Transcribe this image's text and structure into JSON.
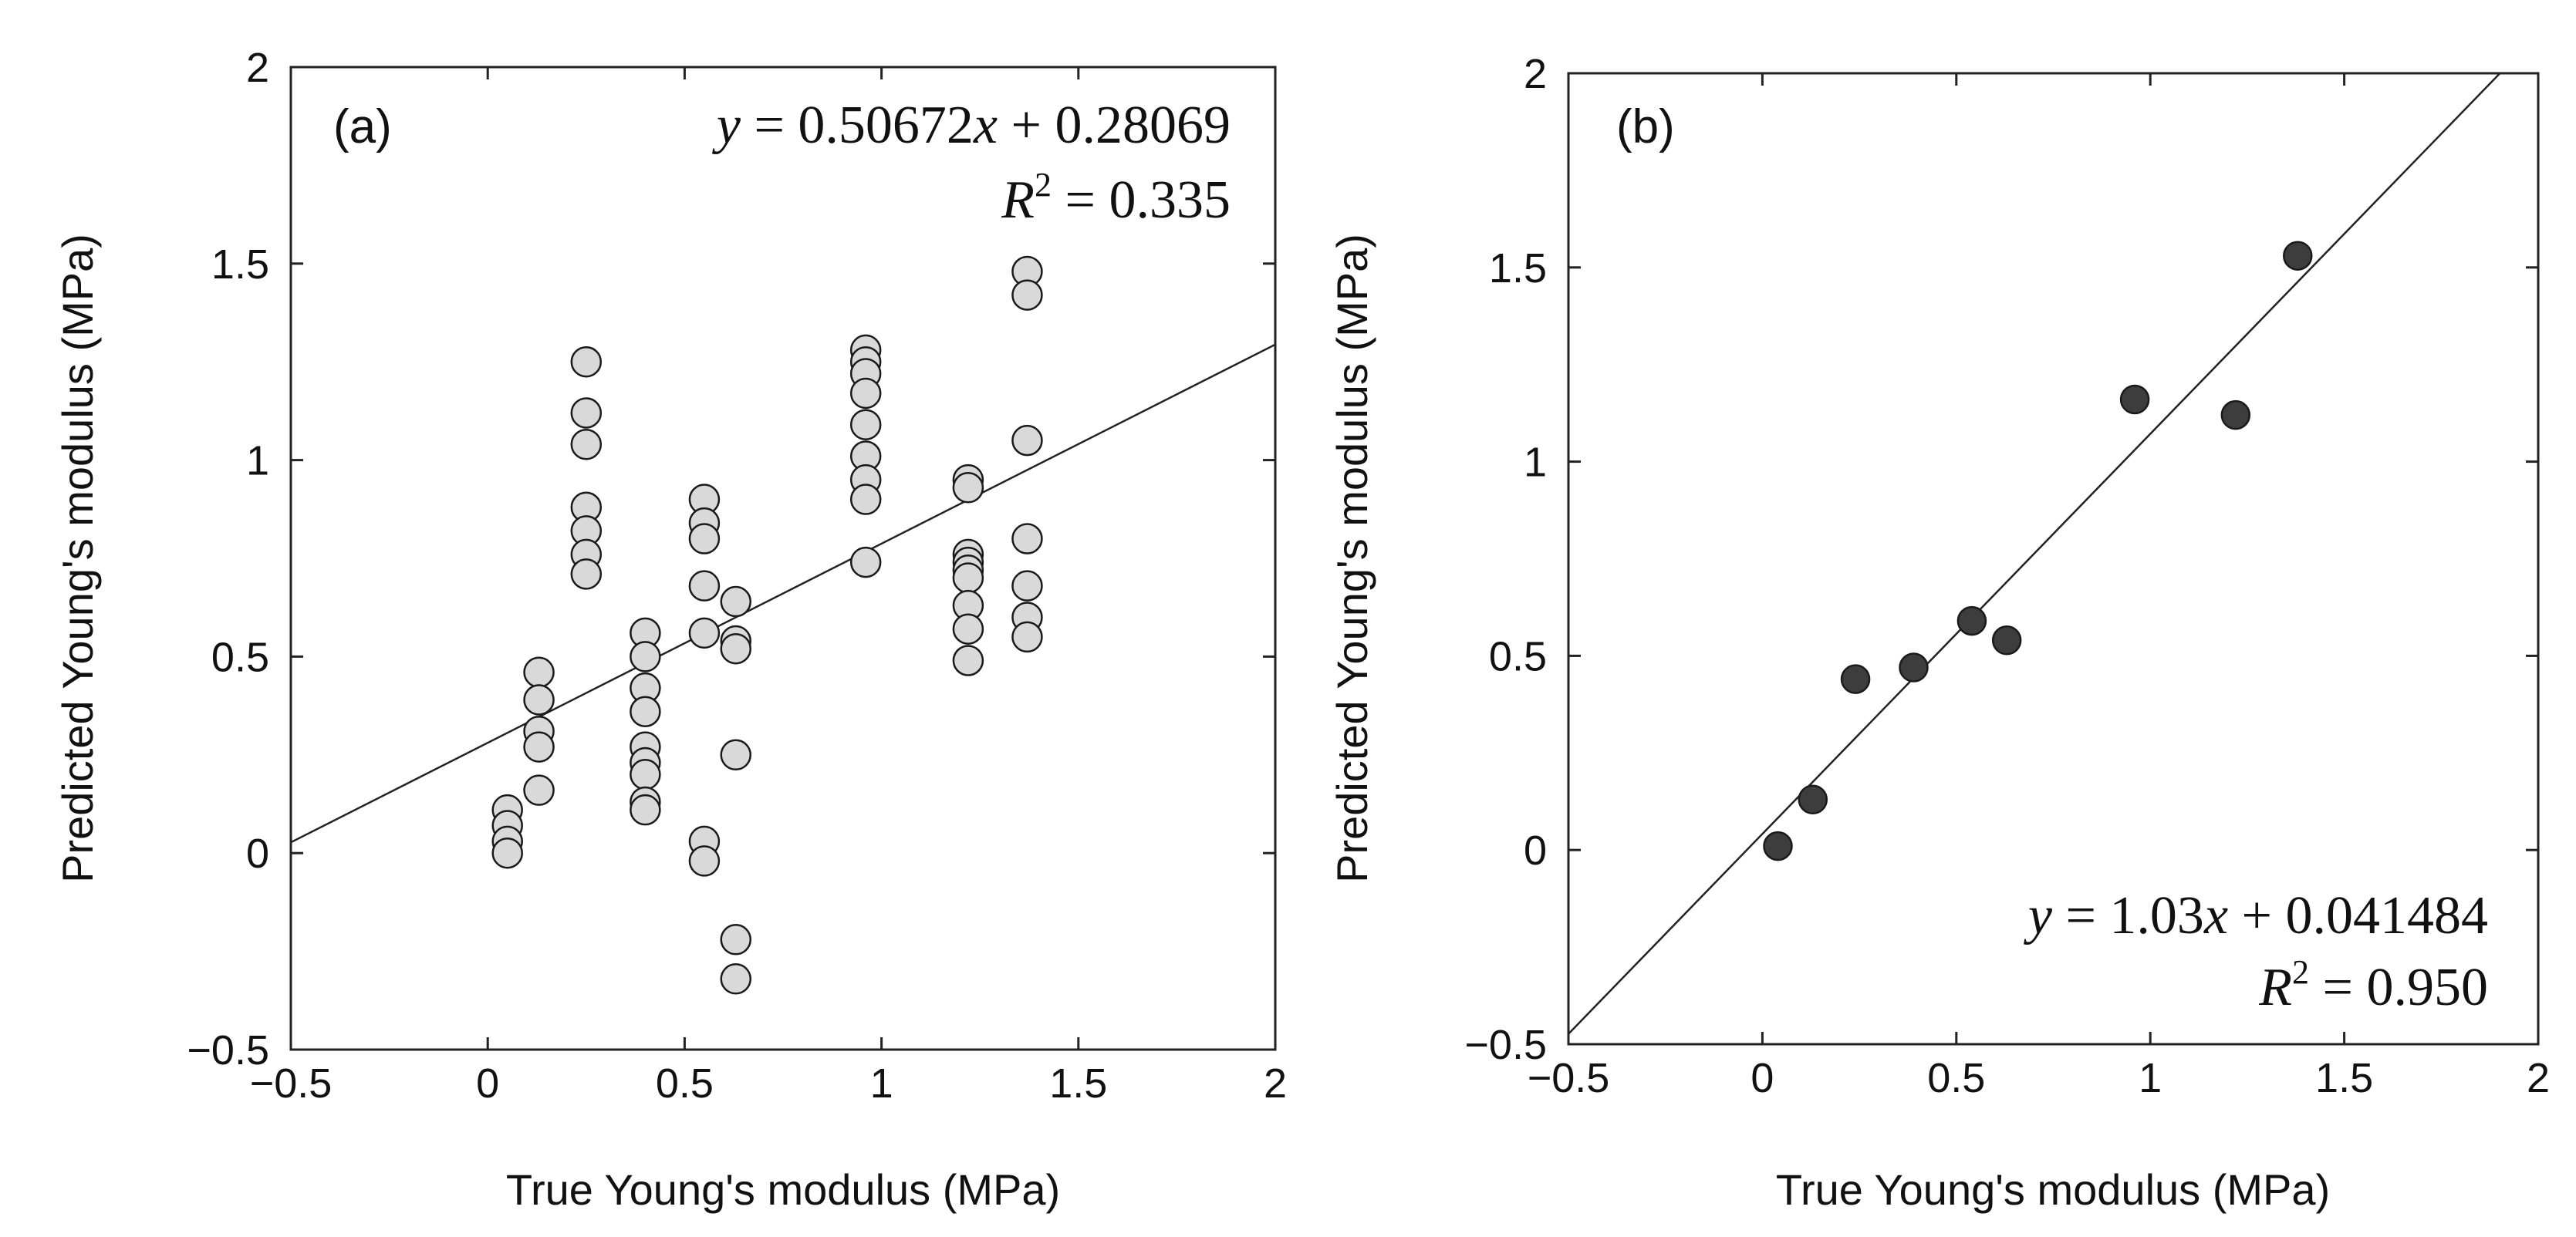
{
  "chart_data": [
    {
      "type": "scatter",
      "panel_label": "(a)",
      "xlabel": "True Young's modulus (MPa)",
      "ylabel": "Predicted Young's modulus (MPa)",
      "xlim": [
        -0.5,
        2
      ],
      "ylim": [
        -0.5,
        2
      ],
      "xticks": [
        "−0.5",
        "0",
        "0.5",
        "1",
        "1.5",
        "2"
      ],
      "yticks": [
        "−0.5",
        "0",
        "0.5",
        "1",
        "1.5",
        "2"
      ],
      "fit": {
        "slope": 0.50672,
        "intercept": 0.28069,
        "eq_y": "y",
        "eq_x": "x",
        "eq_mid": " = 0.50672",
        "eq_end": " + 0.28069",
        "r2_label": "R",
        "r2_sup": "2",
        "r2_value": " = 0.335"
      },
      "marker_color": "#d9d9d9",
      "points": [
        [
          0.05,
          0.11
        ],
        [
          0.05,
          0.07
        ],
        [
          0.05,
          0.03
        ],
        [
          0.05,
          0.0
        ],
        [
          0.13,
          0.46
        ],
        [
          0.13,
          0.39
        ],
        [
          0.13,
          0.31
        ],
        [
          0.13,
          0.27
        ],
        [
          0.13,
          0.16
        ],
        [
          0.25,
          1.25
        ],
        [
          0.25,
          1.12
        ],
        [
          0.25,
          1.04
        ],
        [
          0.25,
          0.88
        ],
        [
          0.25,
          0.82
        ],
        [
          0.25,
          0.76
        ],
        [
          0.25,
          0.71
        ],
        [
          0.4,
          0.56
        ],
        [
          0.4,
          0.5
        ],
        [
          0.4,
          0.42
        ],
        [
          0.4,
          0.36
        ],
        [
          0.4,
          0.27
        ],
        [
          0.4,
          0.23
        ],
        [
          0.4,
          0.2
        ],
        [
          0.4,
          0.13
        ],
        [
          0.4,
          0.11
        ],
        [
          0.55,
          0.9
        ],
        [
          0.55,
          0.84
        ],
        [
          0.55,
          0.8
        ],
        [
          0.55,
          0.68
        ],
        [
          0.55,
          0.56
        ],
        [
          0.55,
          0.03
        ],
        [
          0.55,
          -0.02
        ],
        [
          0.63,
          0.64
        ],
        [
          0.63,
          0.54
        ],
        [
          0.63,
          0.52
        ],
        [
          0.63,
          0.25
        ],
        [
          0.63,
          -0.22
        ],
        [
          0.63,
          -0.32
        ],
        [
          0.96,
          1.28
        ],
        [
          0.96,
          1.25
        ],
        [
          0.96,
          1.22
        ],
        [
          0.96,
          1.17
        ],
        [
          0.96,
          1.09
        ],
        [
          0.96,
          1.01
        ],
        [
          0.96,
          0.95
        ],
        [
          0.96,
          0.9
        ],
        [
          0.96,
          0.74
        ],
        [
          1.22,
          0.95
        ],
        [
          1.22,
          0.93
        ],
        [
          1.22,
          0.76
        ],
        [
          1.22,
          0.74
        ],
        [
          1.22,
          0.72
        ],
        [
          1.22,
          0.7
        ],
        [
          1.22,
          0.63
        ],
        [
          1.22,
          0.57
        ],
        [
          1.22,
          0.49
        ],
        [
          1.37,
          1.48
        ],
        [
          1.37,
          1.42
        ],
        [
          1.37,
          1.05
        ],
        [
          1.37,
          0.8
        ],
        [
          1.37,
          0.68
        ],
        [
          1.37,
          0.6
        ],
        [
          1.37,
          0.55
        ]
      ]
    },
    {
      "type": "scatter",
      "panel_label": "(b)",
      "xlabel": "True Young's modulus (MPa)",
      "ylabel": "Predicted Young's modulus (MPa)",
      "xlim": [
        -0.5,
        2
      ],
      "ylim": [
        -0.5,
        2
      ],
      "xticks": [
        "−0.5",
        "0",
        "0.5",
        "1",
        "1.5",
        "2"
      ],
      "yticks": [
        "−0.5",
        "0",
        "0.5",
        "1",
        "1.5",
        "2"
      ],
      "fit": {
        "slope": 1.03,
        "intercept": 0.041484,
        "eq_y": "y",
        "eq_x": "x",
        "eq_mid": " = 1.03",
        "eq_end": " + 0.041484",
        "r2_label": "R",
        "r2_sup": "2",
        "r2_value": " = 0.950"
      },
      "marker_color": "#3d3d3d",
      "points": [
        [
          0.04,
          0.01
        ],
        [
          0.13,
          0.13
        ],
        [
          0.24,
          0.44
        ],
        [
          0.39,
          0.47
        ],
        [
          0.54,
          0.59
        ],
        [
          0.63,
          0.54
        ],
        [
          0.96,
          1.16
        ],
        [
          1.22,
          1.12
        ],
        [
          1.38,
          1.53
        ]
      ]
    }
  ]
}
